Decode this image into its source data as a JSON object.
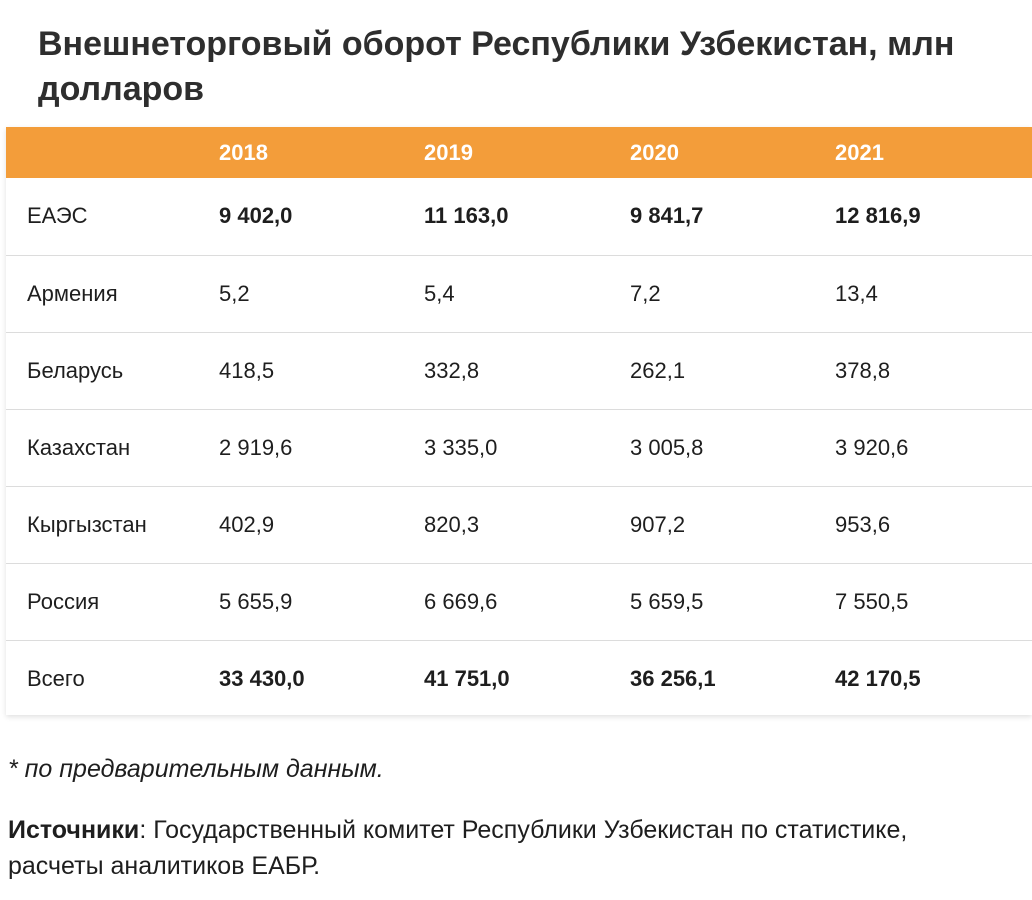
{
  "title": "Внешнеторговый оборот Республики Узбекистан, млн долларов",
  "table": {
    "headers": [
      "",
      "2018",
      "2019",
      "2020",
      "2021"
    ],
    "rows": [
      {
        "label": "ЕАЭС",
        "values": [
          "9 402,0",
          "11 163,0",
          "9 841,7",
          "12 816,9"
        ],
        "bold": true
      },
      {
        "label": "Армения",
        "values": [
          "5,2",
          "5,4",
          "7,2",
          "13,4"
        ],
        "bold": false
      },
      {
        "label": "Беларусь",
        "values": [
          "418,5",
          "332,8",
          "262,1",
          "378,8"
        ],
        "bold": false
      },
      {
        "label": "Казахстан",
        "values": [
          "2 919,6",
          "3 335,0",
          "3 005,8",
          "3 920,6"
        ],
        "bold": false
      },
      {
        "label": "Кыргызстан",
        "values": [
          "402,9",
          "820,3",
          "907,2",
          "953,6"
        ],
        "bold": false
      },
      {
        "label": "Россия",
        "values": [
          "5 655,9",
          "6 669,6",
          "5 659,5",
          "7 550,5"
        ],
        "bold": false
      },
      {
        "label": "Всего",
        "values": [
          "33 430,0",
          "41 751,0",
          "36 256,1",
          "42 170,5"
        ],
        "bold": true
      }
    ]
  },
  "footnote": "* по предварительным данным.",
  "sources": {
    "label": "Источники",
    "separator": ":",
    "text": " Государственный комитет Республики Узбекистан по статистике, расчеты аналитиков ЕАБР."
  },
  "colors": {
    "header_bg": "#f39d3a",
    "header_text": "#ffffff",
    "row_divider": "#dcdcdc"
  }
}
